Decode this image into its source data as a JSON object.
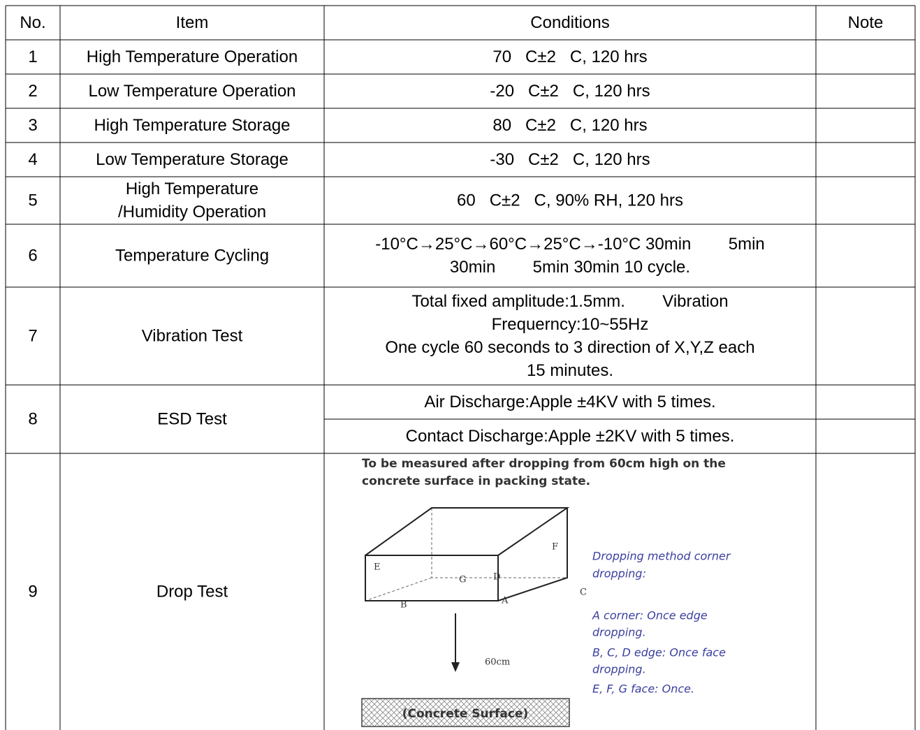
{
  "table": {
    "header": [
      "No.",
      "Item",
      "Conditions",
      "Note"
    ],
    "rows": [
      {
        "no": "1",
        "item": [
          "High Temperature Operation"
        ],
        "conditions": [
          "70   C±2   C, 120 hrs"
        ]
      },
      {
        "no": "2",
        "item": [
          "Low Temperature Operation"
        ],
        "conditions": [
          "-20   C±2   C, 120 hrs"
        ]
      },
      {
        "no": "3",
        "item": [
          "High Temperature Storage"
        ],
        "conditions": [
          "80   C±2   C, 120 hrs"
        ]
      },
      {
        "no": "4",
        "item": [
          "Low Temperature Storage"
        ],
        "conditions": [
          "-30   C±2   C, 120 hrs"
        ]
      },
      {
        "no": "5",
        "item": [
          "High Temperature",
          "/Humidity Operation"
        ],
        "conditions": [
          "60   C±2   C, 90% RH, 120 hrs"
        ]
      },
      {
        "no": "6",
        "item": [
          "Temperature Cycling"
        ],
        "conditions": [
          "-10°C→25°C→60°C→25°C→-10°C 30min        5min",
          "30min        5min 30min 10 cycle."
        ]
      },
      {
        "no": "7",
        "item": [
          "Vibration Test"
        ],
        "conditions": [
          "Total fixed amplitude:1.5mm.        Vibration",
          "Frequerncy:10~55Hz",
          "One cycle 60 seconds to 3 direction of X,Y,Z each",
          "15 minutes."
        ]
      },
      {
        "no": "8",
        "item": [
          "ESD Test"
        ],
        "sub_conditions": [
          "Air Discharge:Apple ±4KV with 5 times.",
          "Contact Discharge:Apple ±2KV with 5 times."
        ]
      },
      {
        "no": "9",
        "item": [
          "Drop Test"
        ],
        "figure": {
          "caption": [
            "To be measured after dropping from 60cm high on the",
            "concrete surface in packing state."
          ],
          "labels": [
            "A",
            "B",
            "C",
            "D",
            "E",
            "F",
            "G"
          ],
          "height": "60cm",
          "surface": "(Concrete Surface)",
          "method": [
            "Dropping method corner",
            "dropping:",
            "A corner: Once edge",
            "dropping.",
            "B, C, D edge: Once face",
            "dropping.",
            "E, F, G face: Once."
          ]
        }
      }
    ]
  }
}
